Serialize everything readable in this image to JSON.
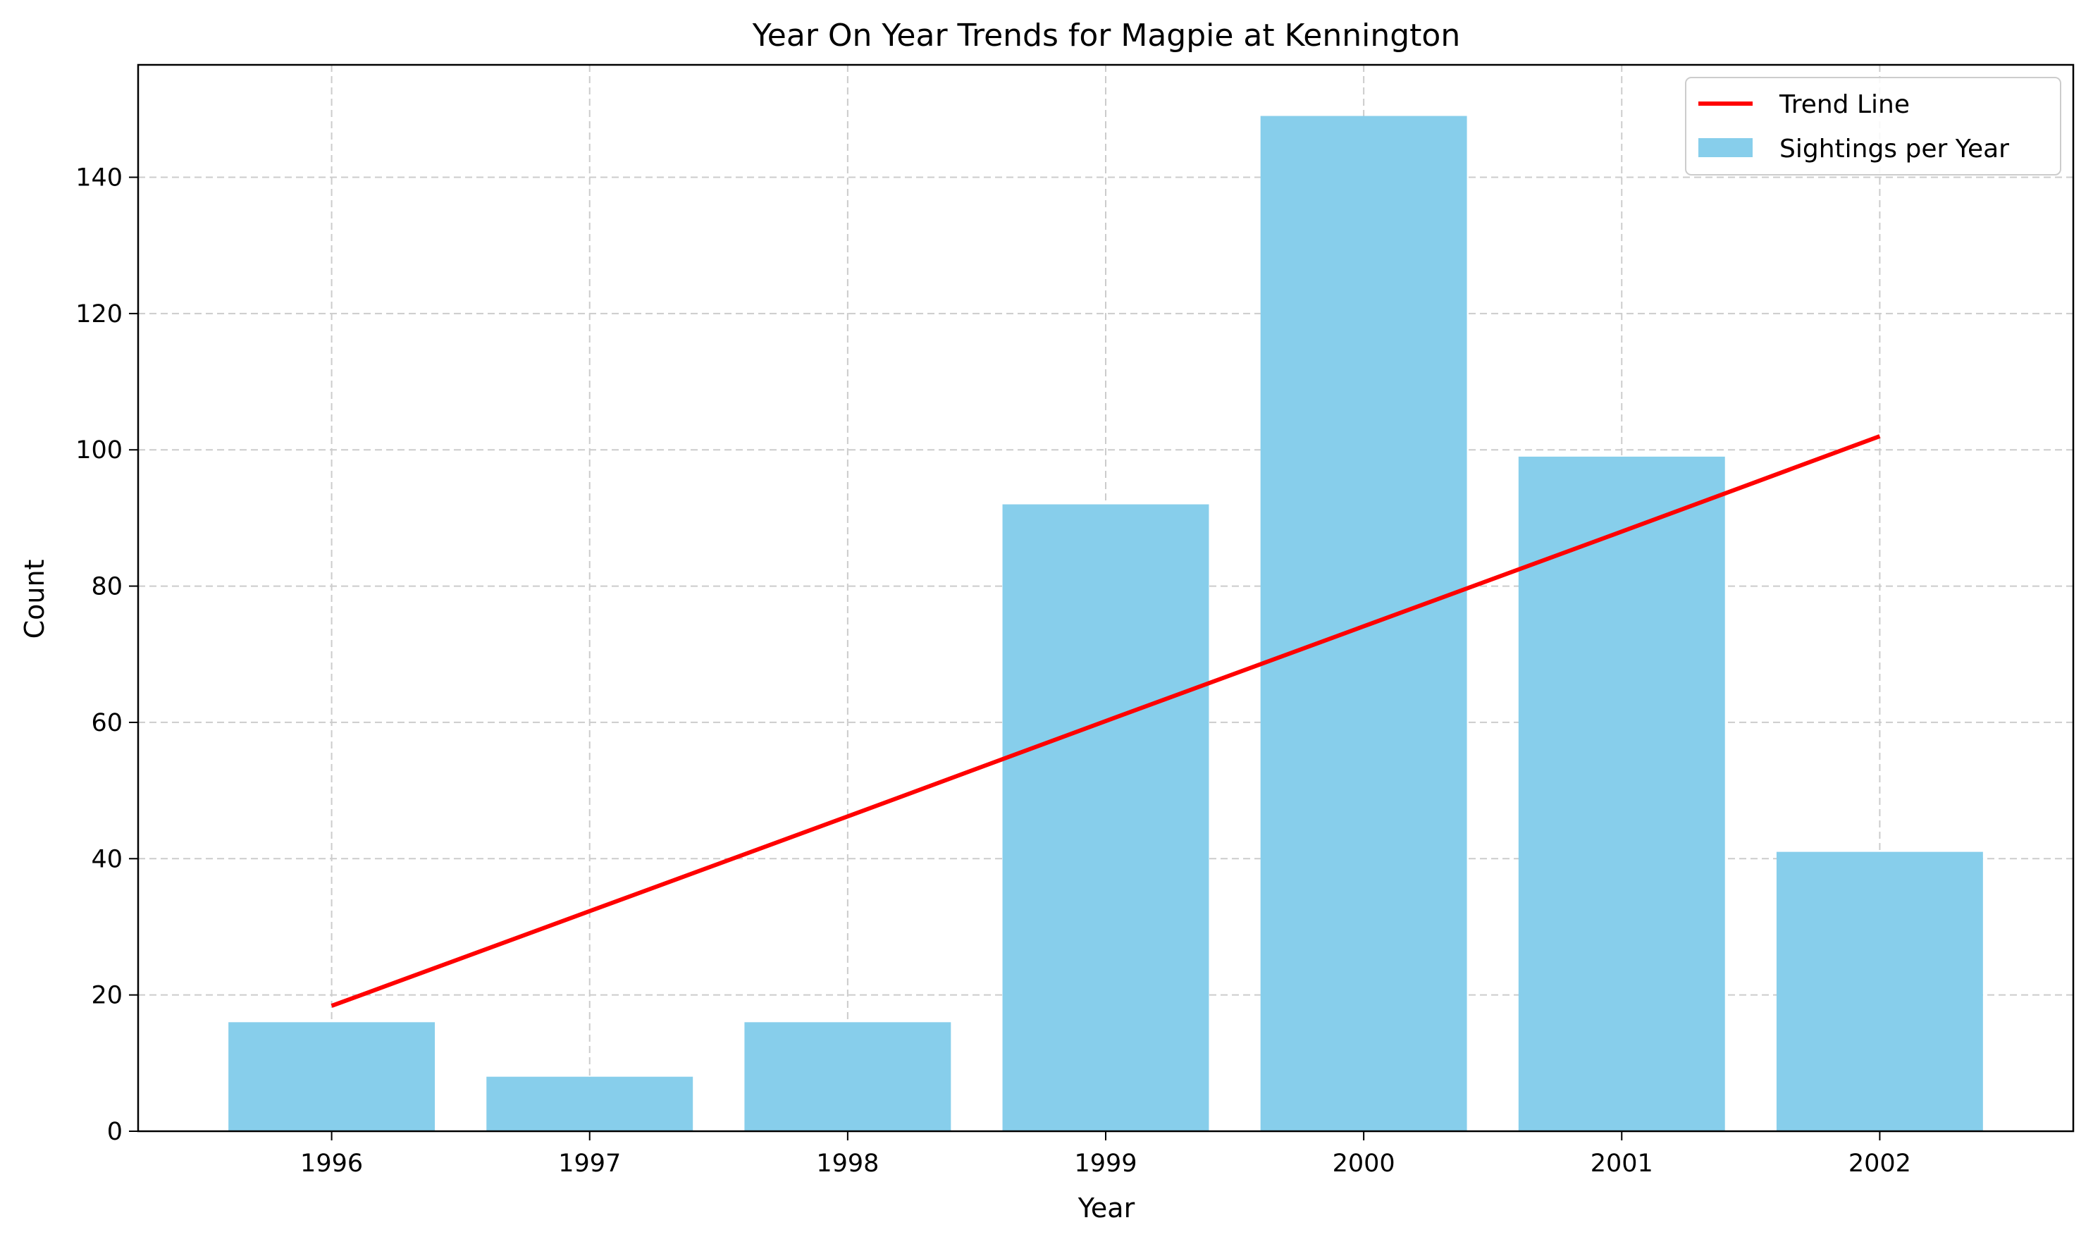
{
  "chart_data": {
    "type": "bar",
    "title": "Year On Year Trends for Magpie at Kennington",
    "xlabel": "Year",
    "ylabel": "Count",
    "categories": [
      "1996",
      "1997",
      "1998",
      "1999",
      "2000",
      "2001",
      "2002"
    ],
    "series": [
      {
        "name": "Sightings per Year",
        "type": "bar",
        "color": "#87CEEB",
        "values": [
          16,
          8,
          16,
          92,
          149,
          99,
          41
        ]
      },
      {
        "name": "Trend Line",
        "type": "line",
        "color": "#ff0000",
        "values": [
          18.4,
          32.3,
          46.2,
          60.2,
          74.1,
          88.0,
          102.0
        ]
      }
    ],
    "yticks": [
      0,
      20,
      40,
      60,
      80,
      100,
      120,
      140
    ],
    "ylim": [
      0,
      156.5
    ],
    "grid": true,
    "legend_position": "top-right"
  }
}
